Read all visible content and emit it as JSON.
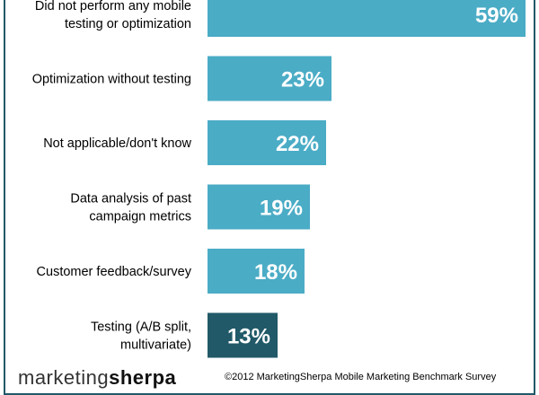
{
  "chart_data": {
    "type": "bar",
    "orientation": "horizontal",
    "categories": [
      [
        "Did not perform any mobile",
        "testing or optimization"
      ],
      [
        "Optimization without testing"
      ],
      [
        "Not applicable/don't know"
      ],
      [
        "Data analysis of past",
        "campaign metrics"
      ],
      [
        "Customer feedback/survey"
      ],
      [
        "Testing (A/B split,",
        "multivariate)"
      ]
    ],
    "values": [
      59,
      23,
      22,
      19,
      18,
      13
    ],
    "value_labels": [
      "59%",
      "23%",
      "22%",
      "19%",
      "18%",
      "13%"
    ],
    "xlim": [
      0,
      60
    ],
    "grid": false,
    "colors": [
      "#4BACC6",
      "#4BACC6",
      "#4BACC6",
      "#4BACC6",
      "#4BACC6",
      "#215968"
    ]
  },
  "footer": {
    "copyright": "©2012 MarketingSherpa Mobile Marketing Benchmark Survey",
    "logo_text_light": "marketing",
    "logo_text_bold": "sherpa"
  }
}
